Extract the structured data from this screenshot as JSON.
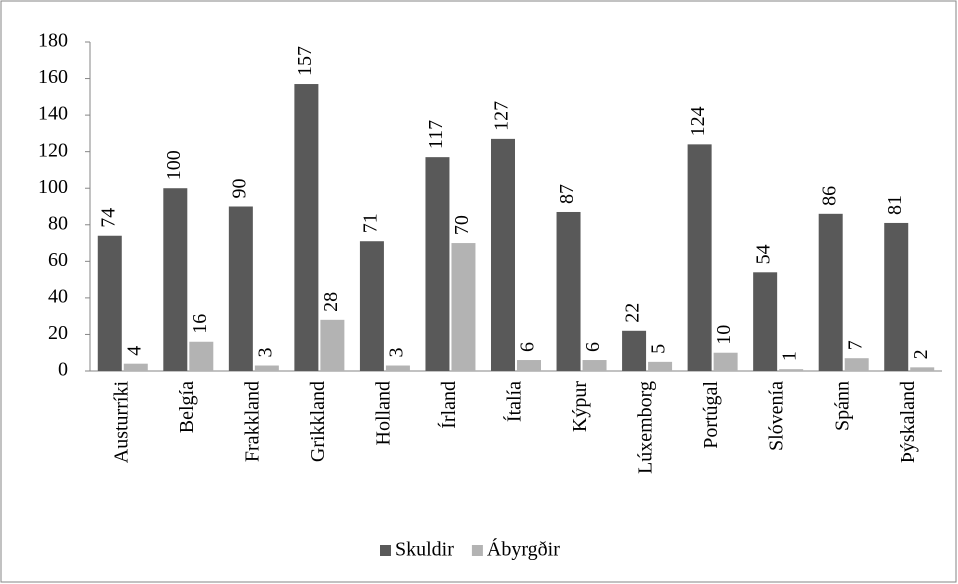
{
  "chart_data": {
    "type": "bar",
    "categories": [
      "Austurríki",
      "Belgía",
      "Frakkland",
      "Grikkland",
      "Holland",
      "Írland",
      "Ítalía",
      "Kýpur",
      "Lúxemborg",
      "Portúgal",
      "Slóvenía",
      "Spánn",
      "Þýskaland"
    ],
    "series": [
      {
        "name": "Skuldir",
        "color": "#595959",
        "values": [
          74,
          100,
          90,
          157,
          71,
          117,
          127,
          87,
          22,
          124,
          54,
          86,
          81
        ]
      },
      {
        "name": "Ábyrgðir",
        "color": "#b3b3b3",
        "values": [
          4,
          16,
          3,
          28,
          3,
          70,
          6,
          6,
          5,
          10,
          1,
          7,
          2
        ]
      }
    ],
    "ylim": [
      0,
      180
    ],
    "yticks": [
      0,
      20,
      40,
      60,
      80,
      100,
      120,
      140,
      160,
      180
    ],
    "grid": false,
    "legend": "bottom"
  }
}
